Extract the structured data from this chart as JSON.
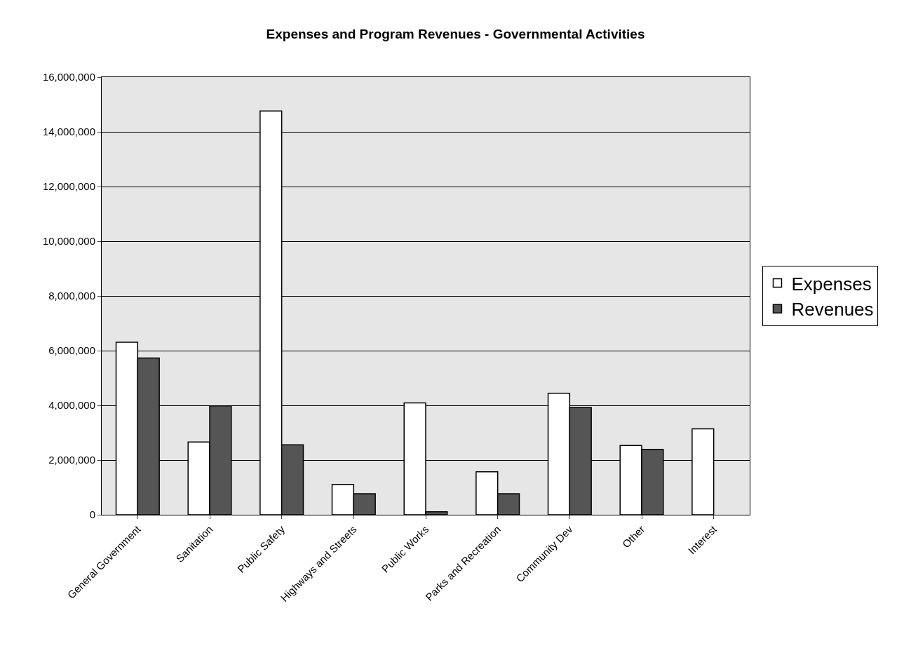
{
  "chart_data": {
    "type": "bar",
    "title": "Expenses and Program Revenues - Governmental Activities",
    "categories": [
      "General Government",
      "Sanitation",
      "Public Safety",
      "Highways and Streets",
      "Public Works",
      "Parks and Recreation",
      "Community Dev",
      "Other",
      "Interest"
    ],
    "series": [
      {
        "name": "Expenses",
        "color": "#ffffff",
        "values": [
          6310000,
          2660000,
          14760000,
          1110000,
          4090000,
          1570000,
          4440000,
          2530000,
          3140000
        ]
      },
      {
        "name": "Revenues",
        "color": "#555555",
        "values": [
          5730000,
          3980000,
          2560000,
          770000,
          110000,
          770000,
          3920000,
          2390000,
          null
        ]
      }
    ],
    "ylim": [
      0,
      16000000
    ],
    "yticks": [
      {
        "value": 0,
        "label": "0"
      },
      {
        "value": 2000000,
        "label": "2,000,000"
      },
      {
        "value": 4000000,
        "label": "4,000,000"
      },
      {
        "value": 6000000,
        "label": "6,000,000"
      },
      {
        "value": 8000000,
        "label": "8,000,000"
      },
      {
        "value": 10000000,
        "label": "10,000,000"
      },
      {
        "value": 12000000,
        "label": "12,000,000"
      },
      {
        "value": 14000000,
        "label": "14,000,000"
      },
      {
        "value": 16000000,
        "label": "16,000,000"
      }
    ],
    "grid": "y",
    "legend": "right"
  }
}
